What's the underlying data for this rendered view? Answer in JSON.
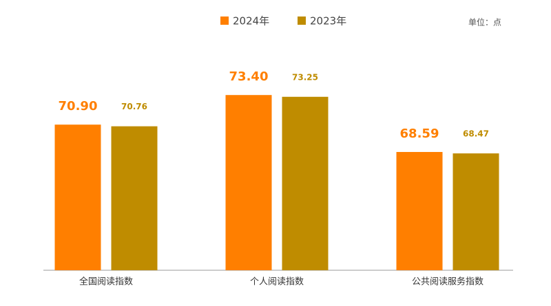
{
  "chart_data": {
    "type": "bar",
    "unit": "单位：点",
    "categories": [
      "全国阅读指数",
      "个人阅读指数",
      "公共阅读服务指数"
    ],
    "series": [
      {
        "name": "2024年",
        "color": "#ff7f00",
        "values": [
          70.9,
          73.4,
          68.59
        ],
        "value_labels": [
          "70.90",
          "73.40",
          "68.59"
        ]
      },
      {
        "name": "2023年",
        "color": "#bf8c00",
        "values": [
          70.76,
          73.25,
          68.47
        ],
        "value_labels": [
          "70.76",
          "73.25",
          "68.47"
        ]
      }
    ],
    "ylim": [
      58.6,
      78
    ],
    "grid": false
  }
}
